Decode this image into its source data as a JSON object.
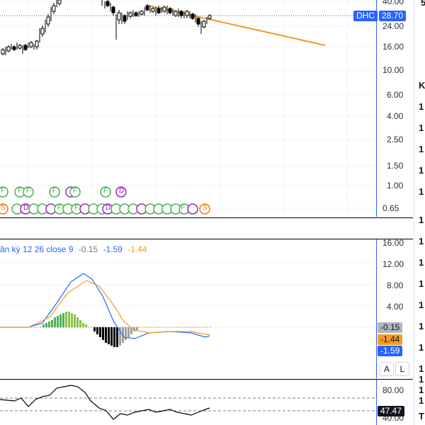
{
  "symbol": {
    "name": "DHC",
    "price": "28.70",
    "color_tag": "#2962ff"
  },
  "price_axis": {
    "ticks": [
      "40.00",
      "24.00",
      "16.00",
      "10.00",
      "6.00",
      "4.00",
      "2.50",
      "1.50",
      "1.00",
      "0.65"
    ],
    "scale": "log"
  },
  "macd": {
    "legend_label": "ân kỳ 12 26 close 9",
    "values": [
      "-0.15",
      "-1.59",
      "-1.44"
    ],
    "axis_ticks": [
      "16.00",
      "12.00",
      "8.00",
      "4.00"
    ],
    "tags": {
      "histogram": "-0.15",
      "signal": "-1.44",
      "macd": "-1.59"
    }
  },
  "rsi": {
    "axis_ticks": [
      "80.00",
      "40.00"
    ],
    "value": "47.47"
  },
  "scale_buttons": {
    "auto": "A",
    "log": "L"
  },
  "events": {
    "row1": [
      "F",
      "F",
      "F",
      "F",
      "F",
      "F",
      "D"
    ],
    "row2": [
      "S",
      "D",
      "F",
      "F",
      "F",
      "D",
      "S"
    ]
  },
  "right_panel": {
    "chars": [
      "K",
      "5",
      "1",
      "1",
      "1",
      "1",
      "1",
      "1",
      "1",
      "1",
      "1",
      "1",
      "1",
      "1",
      "1",
      "1",
      "1",
      "1",
      "T"
    ]
  },
  "colors": {
    "up": "#4caf50",
    "down": "#000000",
    "trend": "#f59b23",
    "macd": "#2962ff",
    "signal": "#f59b23"
  }
}
